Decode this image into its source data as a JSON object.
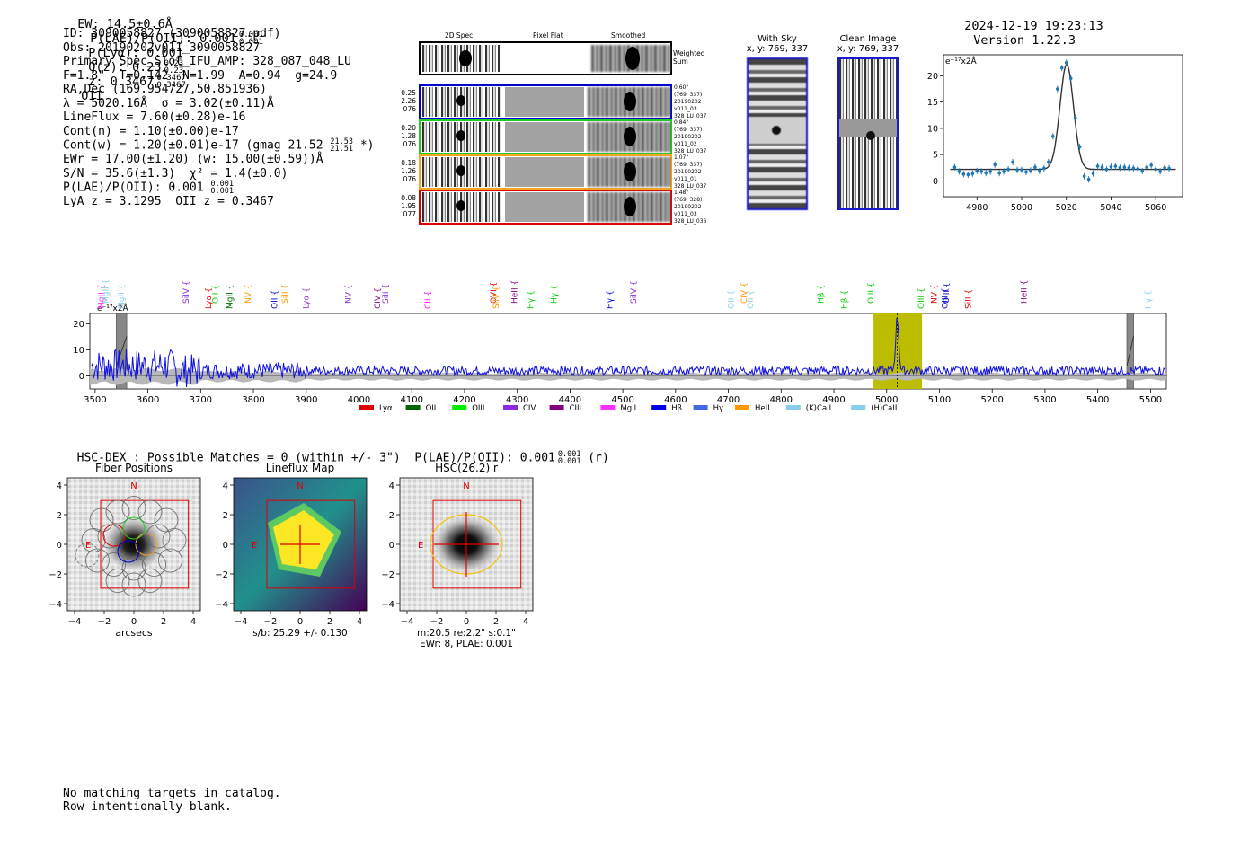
{
  "header": {
    "ew": "EW: 14.5±0.6Å",
    "plae_label": "P(LAE)/P(OII): 0.001",
    "plae_sup": "0.001",
    "plae_sub": "0.001",
    "plya": "P(Lyα): 0.001",
    "qz_label": "Q(z): 0.23",
    "qz_sup": "0.23",
    "qz_sub": "0.23",
    "z_label": "z: 0.3467",
    "z_sup": "0.3467",
    "z_sub": "0.3467",
    "z_line": "OII",
    "timestamp": "2024-12-19 19:23:13",
    "version": "Version 1.22.3"
  },
  "info": {
    "id": "ID: 3090058827 (3090058827.pdf)",
    "obs": "Obs: 20190202v011_3090058827",
    "primary": "Primary Spec_Slot_IFU_AMP: 328_087_048_LU",
    "fiber": "F=1.8\"  T=0.142  N=1.99  A=0.94  g=24.9",
    "radec": "RA,Dec (169.954727,50.851936)",
    "lambda": "λ = 5020.16Å  σ = 3.02(±0.11)Å",
    "lineflux": "LineFlux = 7.60(±0.28)e-16",
    "contn": "Cont(n) = 1.10(±0.00)e-17",
    "contw": "Cont(w) = 1.20(±0.01)e-17 (gmag 21.52",
    "contw_sup": "21.53",
    "contw_sub": "21.51",
    "contw_end": "*)",
    "ewr": "EWr = 17.00(±1.20) (w: 15.00(±0.59))Å",
    "sn": "S/N = 35.6(±1.3)  χ² = 1.4(±0.0)",
    "plae": "P(LAE)/P(OII): 0.001",
    "plae_sup": "0.001",
    "plae_sub": "0.001",
    "lya": "LyA z = 3.1295  OII z = 0.3467"
  },
  "cutouts": {
    "col_2d": "2D Spec",
    "col_flat": "Pixel Flat",
    "col_smooth": "Smoothed",
    "weighted": "Weighted Sum",
    "rows": [
      {
        "left": [
          "0.25",
          "2.26",
          "076"
        ],
        "right": [
          "0.60\"",
          "(769, 337)",
          "20190202",
          "v011_03",
          "328_LU_037"
        ],
        "color": "#0000cc"
      },
      {
        "left": [
          "0.20",
          "1.28",
          "076"
        ],
        "right": [
          "0.84\"",
          "(769, 337)",
          "20190202",
          "v011_02",
          "328_LU_037"
        ],
        "color": "#22cc22"
      },
      {
        "left": [
          "0.18",
          "1.26",
          "076"
        ],
        "right": [
          "1.07\"",
          "(769, 337)",
          "20190202",
          "v011_01",
          "328_LU_037"
        ],
        "color": "#f5a623"
      },
      {
        "left": [
          "0.08",
          "1.95",
          "077"
        ],
        "right": [
          "1.48\"",
          "(769, 328)",
          "20190202",
          "v011_03",
          "328_LU_036"
        ],
        "color": "#e00000"
      }
    ],
    "with_sky_title": "With Sky",
    "with_sky_coord": "x, y: 769, 337",
    "clean_title": "Clean Image",
    "clean_coord": "x, y: 769, 337"
  },
  "chart_data": [
    {
      "type": "scatter",
      "name": "line-fit",
      "ylabel": "e⁻¹⁷x2Å",
      "xlim": [
        4965,
        5072
      ],
      "ylim": [
        -3,
        24
      ],
      "xticks": [
        4980,
        5000,
        5020,
        5040,
        5060
      ],
      "yticks": [
        0,
        5,
        10,
        15,
        20
      ],
      "points": [
        [
          4970,
          2.6
        ],
        [
          4972,
          1.8
        ],
        [
          4974,
          1.3
        ],
        [
          4976,
          1.2
        ],
        [
          4978,
          1.4
        ],
        [
          4980,
          1.9
        ],
        [
          4982,
          1.8
        ],
        [
          4984,
          1.5
        ],
        [
          4986,
          1.8
        ],
        [
          4988,
          3.1
        ],
        [
          4990,
          1.5
        ],
        [
          4992,
          1.8
        ],
        [
          4994,
          2.2
        ],
        [
          4996,
          3.6
        ],
        [
          4998,
          2.1
        ],
        [
          5000,
          2.1
        ],
        [
          5002,
          1.7
        ],
        [
          5004,
          2.0
        ],
        [
          5006,
          2.6
        ],
        [
          5008,
          1.9
        ],
        [
          5010,
          2.4
        ],
        [
          5012,
          3.6
        ],
        [
          5014,
          8.5
        ],
        [
          5016,
          17.5
        ],
        [
          5018,
          21.5
        ],
        [
          5020,
          22.5
        ],
        [
          5022,
          19.5
        ],
        [
          5024,
          12.0
        ],
        [
          5026,
          6.5
        ],
        [
          5028,
          0.9
        ],
        [
          5030,
          0.3
        ],
        [
          5032,
          1.4
        ],
        [
          5034,
          2.8
        ],
        [
          5036,
          2.6
        ],
        [
          5038,
          2.2
        ],
        [
          5040,
          2.7
        ],
        [
          5042,
          2.8
        ],
        [
          5044,
          2.5
        ],
        [
          5046,
          2.6
        ],
        [
          5048,
          2.5
        ],
        [
          5050,
          2.4
        ],
        [
          5052,
          2.3
        ],
        [
          5054,
          1.9
        ],
        [
          5056,
          2.6
        ],
        [
          5058,
          3.0
        ],
        [
          5060,
          2.2
        ],
        [
          5062,
          1.8
        ],
        [
          5064,
          2.5
        ],
        [
          5066,
          2.4
        ]
      ],
      "fit": {
        "center": 5020.16,
        "sigma": 3.02,
        "amp": 20.0,
        "cont": 2.2
      }
    },
    {
      "type": "line",
      "name": "full-spectrum",
      "ylabel": "e⁻¹⁷x2Å",
      "xlim": [
        3490,
        5530
      ],
      "ylim": [
        -5,
        24
      ],
      "xticks": [
        3500,
        3600,
        3700,
        3800,
        3900,
        4000,
        4100,
        4200,
        4300,
        4400,
        4500,
        4600,
        4700,
        4800,
        4900,
        5000,
        5100,
        5200,
        5300,
        5400,
        5500
      ],
      "yticks": [
        0,
        10,
        20
      ],
      "highlight_range": [
        4975,
        5067
      ],
      "peak_at": 5020,
      "masked_ranges": [
        [
          3540,
          3560
        ],
        [
          5455,
          5468
        ]
      ],
      "line_labels": [
        {
          "name": "MgII",
          "x": 3516,
          "color": "#ff33ff"
        },
        {
          "name": "MgII",
          "x": 3525,
          "color": "#87ceeb"
        },
        {
          "name": "MgII",
          "x": 3555,
          "color": "#87ceeb"
        },
        {
          "name": "SiIV",
          "x": 3677,
          "color": "#8a2be2"
        },
        {
          "name": "Lyα",
          "x": 3720,
          "color": "#e00000"
        },
        {
          "name": "OII",
          "x": 3733,
          "color": "#00cc00"
        },
        {
          "name": "MgII",
          "x": 3760,
          "color": "#006400"
        },
        {
          "name": "NV",
          "x": 3795,
          "color": "#ff9900"
        },
        {
          "name": "OII",
          "x": 3845,
          "color": "#0000cc"
        },
        {
          "name": "SiII",
          "x": 3865,
          "color": "#ff9900"
        },
        {
          "name": "Lyα",
          "x": 3905,
          "color": "#8a2be2"
        },
        {
          "name": "NV",
          "x": 3985,
          "color": "#8a2be2"
        },
        {
          "name": "CIV",
          "x": 4040,
          "color": "#800080"
        },
        {
          "name": "SiII",
          "x": 4055,
          "color": "#8a2be2"
        },
        {
          "name": "CII",
          "x": 4135,
          "color": "#ff00ff"
        },
        {
          "name": "OVI",
          "x": 4260,
          "color": "#e00000"
        },
        {
          "name": "SiIV",
          "x": 4265,
          "color": "#ff9900"
        },
        {
          "name": "HeII",
          "x": 4300,
          "color": "#800080"
        },
        {
          "name": "Hγ",
          "x": 4330,
          "color": "#00cc00"
        },
        {
          "name": "Hγ",
          "x": 4375,
          "color": "#00cc00"
        },
        {
          "name": "Hγ",
          "x": 4480,
          "color": "#0000cc"
        },
        {
          "name": "SiIV",
          "x": 4525,
          "color": "#8a2be2"
        },
        {
          "name": "OII",
          "x": 4710,
          "color": "#87ceeb"
        },
        {
          "name": "CIV",
          "x": 4735,
          "color": "#ff9900"
        },
        {
          "name": "OII",
          "x": 4747,
          "color": "#87ceeb"
        },
        {
          "name": "Hβ",
          "x": 4880,
          "color": "#00cc00"
        },
        {
          "name": "Hβ",
          "x": 4925,
          "color": "#00cc00"
        },
        {
          "name": "OIII",
          "x": 4975,
          "color": "#00cc00"
        },
        {
          "name": "OIII",
          "x": 5070,
          "color": "#00cc00"
        },
        {
          "name": "NV",
          "x": 5095,
          "color": "#e00000"
        },
        {
          "name": "OIII",
          "x": 5115,
          "color": "#0000cc"
        },
        {
          "name": "OIII",
          "x": 5118,
          "color": "#0000cc"
        },
        {
          "name": "SiII",
          "x": 5160,
          "color": "#e00000"
        },
        {
          "name": "HeII",
          "x": 5265,
          "color": "#800080"
        },
        {
          "name": "Hγ",
          "x": 5500,
          "color": "#87ceeb"
        }
      ],
      "legend": [
        {
          "name": "Lyα",
          "color": "#e00000"
        },
        {
          "name": "OII",
          "color": "#006400"
        },
        {
          "name": "OIII",
          "color": "#00ee00"
        },
        {
          "name": "CIV",
          "color": "#8a2be2"
        },
        {
          "name": "CIII",
          "color": "#800080"
        },
        {
          "name": "MgII",
          "color": "#ff33ff"
        },
        {
          "name": "Hβ",
          "color": "#0000ee"
        },
        {
          "name": "Hγ",
          "color": "#4169e1"
        },
        {
          "name": "HeII",
          "color": "#ff9900"
        },
        {
          "name": "(K)CaII",
          "color": "#87ceeb"
        },
        {
          "name": "(H)CaII",
          "color": "#87ceeb"
        }
      ]
    }
  ],
  "hsc": {
    "line_a": "HSC-DEX : Possible Matches = 0 (within +/- 3\")  P(LAE)/P(OII): 0.001",
    "line_sup": "0.001",
    "line_sub": "0.001",
    "line_b": "(r)",
    "panels": [
      {
        "title": "Fiber Positions",
        "xlabel": "arcsecs",
        "caption": ""
      },
      {
        "title": "Lineflux Map",
        "xlabel": "",
        "caption": "s/b: 25.29 +/- 0.130"
      },
      {
        "title": "HSC(26.2) r",
        "xlabel": "",
        "caption": "m:20.5  re:2.2\"  s:0.1\"",
        "caption2": "EWr: 8, PLAE: 0.001"
      }
    ],
    "n_label": "N",
    "e_label": "E",
    "ticks": [
      "−4",
      "−2",
      "0",
      "2",
      "4"
    ]
  },
  "footer": {
    "line1": "No matching targets in catalog.",
    "line2": "Row intentionally blank."
  }
}
